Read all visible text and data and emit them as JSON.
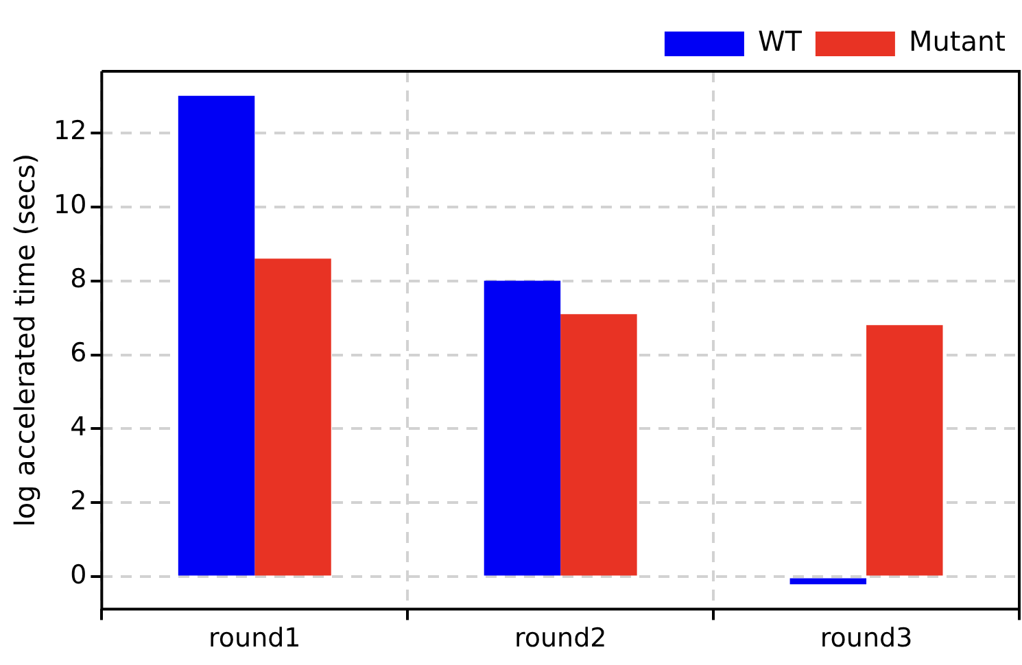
{
  "chart_data": {
    "type": "bar",
    "ylabel": "log accelerated time (secs)",
    "categories": [
      "round1",
      "round2",
      "round3"
    ],
    "series": [
      {
        "name": "WT",
        "color": "#0000f5",
        "values": [
          13.0,
          8.0,
          -0.2
        ]
      },
      {
        "name": "Mutant",
        "color": "#e83324",
        "values": [
          8.6,
          7.1,
          6.8
        ]
      }
    ],
    "ylim": [
      -0.87,
      13.66
    ],
    "yticks": [
      0,
      2,
      4,
      6,
      8,
      10,
      12
    ],
    "grid": true,
    "legend": "top right"
  }
}
